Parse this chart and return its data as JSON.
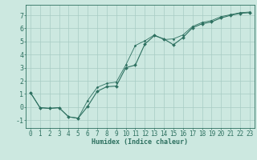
{
  "xlabel": "Humidex (Indice chaleur)",
  "background_color": "#cce8e0",
  "grid_color": "#a8ccc4",
  "line_color": "#2d7060",
  "xlim": [
    -0.5,
    23.5
  ],
  "ylim": [
    -1.6,
    7.8
  ],
  "xticks": [
    0,
    1,
    2,
    3,
    4,
    5,
    6,
    7,
    8,
    9,
    10,
    11,
    12,
    13,
    14,
    15,
    16,
    17,
    18,
    19,
    20,
    21,
    22,
    23
  ],
  "yticks": [
    -1,
    0,
    1,
    2,
    3,
    4,
    5,
    6,
    7
  ],
  "line1_x": [
    0,
    1,
    2,
    3,
    4,
    5,
    6,
    7,
    8,
    9,
    10,
    11,
    12,
    13,
    14,
    15,
    16,
    17,
    18,
    19,
    20,
    21,
    22,
    23
  ],
  "line1_y": [
    1.1,
    -0.05,
    -0.1,
    -0.05,
    -0.75,
    -0.85,
    0.05,
    1.2,
    1.55,
    1.6,
    3.0,
    3.2,
    4.8,
    5.45,
    5.2,
    4.75,
    5.3,
    6.05,
    6.35,
    6.5,
    6.8,
    7.0,
    7.15,
    7.2
  ],
  "line2_x": [
    0,
    1,
    2,
    3,
    4,
    5,
    6,
    7,
    8,
    9,
    10,
    11,
    12,
    13,
    14,
    15,
    16,
    17,
    18,
    19,
    20,
    21,
    22,
    23
  ],
  "line2_y": [
    1.1,
    -0.05,
    -0.1,
    -0.05,
    -0.75,
    -0.85,
    0.5,
    1.5,
    1.8,
    1.9,
    3.2,
    4.7,
    5.05,
    5.5,
    5.15,
    5.2,
    5.5,
    6.15,
    6.45,
    6.6,
    6.9,
    7.05,
    7.2,
    7.25
  ],
  "xlabel_fontsize": 6,
  "tick_fontsize": 5.5
}
